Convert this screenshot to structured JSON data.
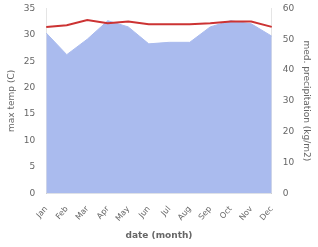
{
  "chart_data": {
    "type": "line",
    "xlabel": "date (month)",
    "ylabel": "max temp (C)",
    "y2label": "med. precipitation (kg/m2)",
    "categories": [
      "Jan",
      "Feb",
      "Mar",
      "Apr",
      "May",
      "Jun",
      "Jul",
      "Aug",
      "Sep",
      "Oct",
      "Nov",
      "Dec"
    ],
    "series": [
      {
        "type": "area",
        "axis": "y2",
        "color": "#aabbee",
        "values": [
          52.0,
          45.0,
          50.0,
          56.0,
          54.0,
          48.5,
          49.0,
          49.0,
          54.0,
          56.0,
          55.0,
          51.0
        ]
      },
      {
        "type": "line",
        "axis": "y",
        "color": "#cc3333",
        "values": [
          31.5,
          31.8,
          32.8,
          32.2,
          32.5,
          32.0,
          32.0,
          32.0,
          32.2,
          32.5,
          32.5,
          31.5
        ]
      }
    ],
    "ylim": [
      0,
      35
    ],
    "yticks": [
      0,
      5,
      10,
      15,
      20,
      25,
      30,
      35
    ],
    "y2lim": [
      0,
      60
    ],
    "y2ticks": [
      0,
      10,
      20,
      30,
      40,
      50,
      60
    ],
    "grid": false
  }
}
